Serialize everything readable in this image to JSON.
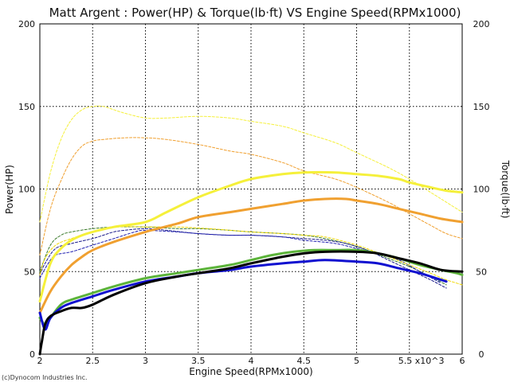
{
  "chart_data": {
    "type": "line",
    "title": "Matt Argent : Power(HP) & Torque(lb·ft) VS Engine Speed(RPMx1000)",
    "xlabel": "Engine Speed(RPMx1000)",
    "ylabel_left": "Power(HP)",
    "ylabel_right": "Torque(lb·ft)",
    "x_tick_labels": [
      "2",
      "2.5",
      "3",
      "3.5",
      "4",
      "4.5",
      "5",
      "5.5 x10^3",
      "6"
    ],
    "y_tick_labels": [
      "0",
      "50",
      "100",
      "150",
      "200"
    ],
    "xlim": [
      2,
      6
    ],
    "ylim": [
      0,
      200
    ],
    "grid": true,
    "copyright": "(c)Dynocom Industries Inc.",
    "series": [
      {
        "color": "#f5f03a",
        "width": 1,
        "dash": true,
        "points": [
          [
            2.0,
            80
          ],
          [
            2.1,
            110
          ],
          [
            2.2,
            130
          ],
          [
            2.3,
            142
          ],
          [
            2.4,
            148
          ],
          [
            2.5,
            150
          ],
          [
            2.6,
            150
          ],
          [
            2.7,
            148
          ],
          [
            2.8,
            146
          ],
          [
            3.0,
            143
          ],
          [
            3.2,
            143
          ],
          [
            3.5,
            144
          ],
          [
            3.8,
            143
          ],
          [
            4.0,
            141
          ],
          [
            4.3,
            138
          ],
          [
            4.5,
            134
          ],
          [
            4.8,
            128
          ],
          [
            5.0,
            122
          ],
          [
            5.3,
            113
          ],
          [
            5.5,
            106
          ],
          [
            5.7,
            98
          ],
          [
            5.85,
            92
          ],
          [
            6.0,
            86
          ]
        ]
      },
      {
        "color": "#f0a030",
        "width": 1,
        "dash": true,
        "points": [
          [
            2.0,
            60
          ],
          [
            2.1,
            88
          ],
          [
            2.2,
            105
          ],
          [
            2.3,
            118
          ],
          [
            2.4,
            126
          ],
          [
            2.5,
            129
          ],
          [
            2.6,
            130
          ],
          [
            2.8,
            131
          ],
          [
            3.0,
            131
          ],
          [
            3.2,
            130
          ],
          [
            3.5,
            127
          ],
          [
            3.8,
            123
          ],
          [
            4.0,
            121
          ],
          [
            4.3,
            116
          ],
          [
            4.5,
            111
          ],
          [
            4.8,
            106
          ],
          [
            5.0,
            101
          ],
          [
            5.3,
            92
          ],
          [
            5.5,
            85
          ],
          [
            5.7,
            78
          ],
          [
            5.85,
            73
          ],
          [
            6.0,
            70
          ]
        ]
      },
      {
        "color": "#3a7a2a",
        "width": 1,
        "dash": true,
        "points": [
          [
            2.0,
            50
          ],
          [
            2.1,
            66
          ],
          [
            2.2,
            72
          ],
          [
            2.3,
            74
          ],
          [
            2.5,
            76
          ],
          [
            2.7,
            77
          ],
          [
            3.0,
            77
          ],
          [
            3.3,
            76
          ],
          [
            3.5,
            76
          ],
          [
            3.8,
            75
          ],
          [
            4.0,
            74
          ],
          [
            4.3,
            73
          ],
          [
            4.5,
            72
          ],
          [
            4.7,
            70
          ],
          [
            4.9,
            67
          ],
          [
            5.1,
            63
          ],
          [
            5.3,
            58
          ],
          [
            5.5,
            53
          ],
          [
            5.7,
            47
          ],
          [
            5.85,
            42
          ]
        ]
      },
      {
        "color": "#1a1a8a",
        "width": 1,
        "dash": true,
        "points": [
          [
            2.0,
            48
          ],
          [
            2.05,
            55
          ],
          [
            2.15,
            64
          ],
          [
            2.3,
            67
          ],
          [
            2.5,
            70
          ],
          [
            2.6,
            72
          ],
          [
            2.7,
            74
          ],
          [
            2.8,
            75
          ],
          [
            3.0,
            76
          ],
          [
            3.2,
            75
          ],
          [
            3.5,
            73
          ],
          [
            3.8,
            72
          ],
          [
            4.0,
            72
          ],
          [
            4.3,
            71
          ],
          [
            4.5,
            70
          ],
          [
            4.7,
            69
          ],
          [
            4.9,
            67
          ],
          [
            5.1,
            63
          ],
          [
            5.3,
            57
          ],
          [
            5.5,
            51
          ],
          [
            5.7,
            45
          ],
          [
            5.85,
            40
          ]
        ]
      },
      {
        "color": "#1e1eb0",
        "width": 1,
        "dash": true,
        "points": [
          [
            2.0,
            46
          ],
          [
            2.08,
            55
          ],
          [
            2.15,
            60
          ],
          [
            2.3,
            62
          ],
          [
            2.5,
            66
          ],
          [
            2.7,
            70
          ],
          [
            2.9,
            74
          ],
          [
            3.0,
            75
          ],
          [
            3.3,
            74
          ],
          [
            3.5,
            73
          ],
          [
            3.8,
            72
          ],
          [
            4.0,
            72
          ],
          [
            4.3,
            71
          ],
          [
            4.5,
            69
          ],
          [
            4.8,
            67
          ],
          [
            5.0,
            64
          ],
          [
            5.2,
            61
          ],
          [
            5.4,
            57
          ],
          [
            5.6,
            50
          ],
          [
            5.8,
            43
          ]
        ]
      },
      {
        "color": "#f0d800",
        "width": 1,
        "dash": true,
        "points": [
          [
            2.0,
            48
          ],
          [
            2.05,
            58
          ],
          [
            2.15,
            66
          ],
          [
            2.3,
            70
          ],
          [
            2.5,
            74
          ],
          [
            2.7,
            77
          ],
          [
            3.0,
            77
          ],
          [
            3.3,
            77
          ],
          [
            3.6,
            76
          ],
          [
            4.0,
            74
          ],
          [
            4.3,
            73
          ],
          [
            4.5,
            72
          ],
          [
            4.7,
            71
          ],
          [
            5.0,
            66
          ],
          [
            5.3,
            59
          ],
          [
            5.5,
            54
          ],
          [
            5.7,
            49
          ],
          [
            5.85,
            45
          ],
          [
            6.0,
            42
          ]
        ]
      },
      {
        "color": "#5cb43a",
        "width": 3,
        "dash": false,
        "points": [
          [
            2.0,
            22
          ],
          [
            2.05,
            18
          ],
          [
            2.1,
            22
          ],
          [
            2.2,
            30
          ],
          [
            2.3,
            33
          ],
          [
            2.5,
            37
          ],
          [
            2.7,
            41
          ],
          [
            3.0,
            46
          ],
          [
            3.3,
            49
          ],
          [
            3.5,
            51
          ],
          [
            3.8,
            54
          ],
          [
            4.0,
            57
          ],
          [
            4.2,
            60
          ],
          [
            4.4,
            62
          ],
          [
            4.6,
            63
          ],
          [
            4.8,
            63
          ],
          [
            5.0,
            63
          ],
          [
            5.2,
            61
          ],
          [
            5.4,
            58
          ],
          [
            5.6,
            54
          ],
          [
            5.8,
            51
          ],
          [
            5.95,
            49
          ],
          [
            6.0,
            48
          ]
        ]
      },
      {
        "color": "#f5f03a",
        "width": 3,
        "dash": false,
        "points": [
          [
            2.0,
            32
          ],
          [
            2.1,
            55
          ],
          [
            2.2,
            64
          ],
          [
            2.3,
            69
          ],
          [
            2.4,
            72
          ],
          [
            2.5,
            74
          ],
          [
            2.7,
            77
          ],
          [
            3.0,
            80
          ],
          [
            3.2,
            86
          ],
          [
            3.5,
            95
          ],
          [
            3.8,
            102
          ],
          [
            4.0,
            106
          ],
          [
            4.3,
            109
          ],
          [
            4.5,
            110
          ],
          [
            4.8,
            110
          ],
          [
            5.0,
            109
          ],
          [
            5.2,
            108
          ],
          [
            5.4,
            106
          ],
          [
            5.5,
            104
          ],
          [
            5.7,
            101
          ],
          [
            5.85,
            99
          ],
          [
            6.0,
            98
          ]
        ]
      },
      {
        "color": "#f0a030",
        "width": 3,
        "dash": false,
        "points": [
          [
            2.0,
            25
          ],
          [
            2.1,
            38
          ],
          [
            2.2,
            47
          ],
          [
            2.3,
            54
          ],
          [
            2.4,
            59
          ],
          [
            2.5,
            63
          ],
          [
            2.7,
            68
          ],
          [
            3.0,
            74
          ],
          [
            3.3,
            79
          ],
          [
            3.5,
            83
          ],
          [
            3.8,
            86
          ],
          [
            4.0,
            88
          ],
          [
            4.3,
            91
          ],
          [
            4.5,
            93
          ],
          [
            4.7,
            94
          ],
          [
            4.9,
            94
          ],
          [
            5.0,
            93
          ],
          [
            5.2,
            91
          ],
          [
            5.4,
            88
          ],
          [
            5.6,
            85
          ],
          [
            5.8,
            82
          ],
          [
            6.0,
            80
          ]
        ]
      },
      {
        "color": "#1010d0",
        "width": 3,
        "dash": false,
        "points": [
          [
            2.0,
            25
          ],
          [
            2.05,
            15
          ],
          [
            2.1,
            22
          ],
          [
            2.2,
            28
          ],
          [
            2.3,
            31
          ],
          [
            2.5,
            35
          ],
          [
            2.7,
            39
          ],
          [
            3.0,
            44
          ],
          [
            3.3,
            47
          ],
          [
            3.5,
            49
          ],
          [
            3.8,
            51
          ],
          [
            4.0,
            53
          ],
          [
            4.3,
            55
          ],
          [
            4.5,
            56
          ],
          [
            4.7,
            57
          ],
          [
            5.0,
            56
          ],
          [
            5.2,
            55
          ],
          [
            5.4,
            52
          ],
          [
            5.6,
            49
          ],
          [
            5.75,
            46
          ],
          [
            5.85,
            44
          ]
        ]
      },
      {
        "color": "#000000",
        "width": 3,
        "dash": false,
        "points": [
          [
            2.0,
            0
          ],
          [
            2.02,
            8
          ],
          [
            2.05,
            18
          ],
          [
            2.1,
            23
          ],
          [
            2.2,
            26
          ],
          [
            2.3,
            28
          ],
          [
            2.4,
            28
          ],
          [
            2.5,
            30
          ],
          [
            2.7,
            36
          ],
          [
            3.0,
            43
          ],
          [
            3.3,
            47
          ],
          [
            3.5,
            49
          ],
          [
            3.8,
            52
          ],
          [
            4.0,
            55
          ],
          [
            4.3,
            59
          ],
          [
            4.5,
            61
          ],
          [
            4.7,
            62
          ],
          [
            5.0,
            62
          ],
          [
            5.2,
            61
          ],
          [
            5.4,
            58
          ],
          [
            5.6,
            55
          ],
          [
            5.8,
            51
          ],
          [
            6.0,
            50
          ]
        ]
      }
    ]
  }
}
